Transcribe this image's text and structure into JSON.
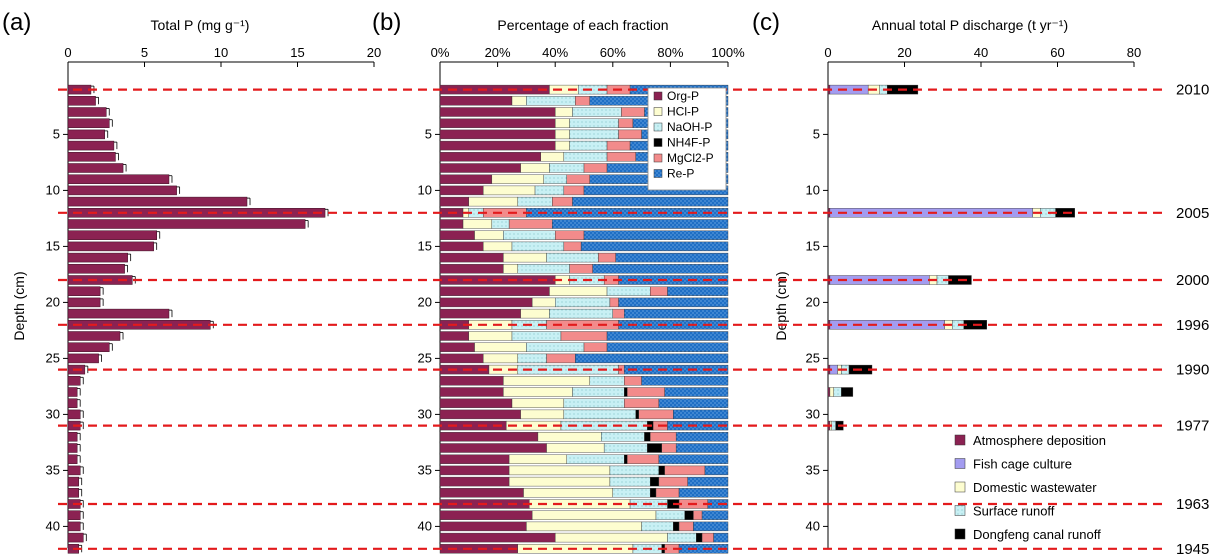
{
  "panel_labels": [
    "(a)",
    "(b)",
    "(c)"
  ],
  "year_labels": [
    {
      "depth": 1,
      "year": "2010"
    },
    {
      "depth": 12,
      "year": "2005"
    },
    {
      "depth": 18,
      "year": "2000"
    },
    {
      "depth": 22,
      "year": "1996"
    },
    {
      "depth": 26,
      "year": "1990"
    },
    {
      "depth": 31,
      "year": "1977"
    },
    {
      "depth": 38,
      "year": "1963"
    },
    {
      "depth": 42,
      "year": "1945"
    }
  ],
  "colors": {
    "org": "#8b2252",
    "hcl": "#fdfdd0",
    "naoh": "#c8f0f4",
    "nh4f": "#000000",
    "mgcl2": "#f28b8b",
    "rep": "#1f6fc5",
    "fish": "#a39cf0",
    "dashed": "#e31a1c"
  },
  "chart_data": [
    {
      "type": "bar",
      "orientation": "horizontal",
      "title": "Total P (mg g⁻¹)",
      "ylabel": "Depth (cm)",
      "xlim": [
        0,
        20
      ],
      "ylim": [
        42,
        0
      ],
      "xticks": [
        "0",
        "5",
        "10",
        "15",
        "20"
      ],
      "yticks": [
        "5",
        "10",
        "15",
        "20",
        "25",
        "30",
        "35",
        "40"
      ],
      "depths": [
        1,
        2,
        3,
        4,
        5,
        6,
        7,
        8,
        9,
        10,
        11,
        12,
        13,
        14,
        15,
        16,
        17,
        18,
        19,
        20,
        21,
        22,
        23,
        24,
        25,
        26,
        27,
        28,
        29,
        30,
        31,
        32,
        33,
        34,
        35,
        36,
        37,
        38,
        39,
        40,
        41,
        42
      ],
      "values": [
        1.5,
        1.8,
        2.5,
        2.7,
        2.4,
        3.0,
        3.1,
        3.6,
        6.6,
        7.1,
        11.7,
        16.8,
        15.5,
        5.8,
        5.6,
        3.9,
        3.7,
        4.2,
        2.1,
        2.1,
        6.6,
        9.3,
        3.4,
        2.7,
        2.0,
        1.1,
        0.8,
        0.6,
        0.6,
        0.8,
        0.8,
        0.6,
        0.6,
        0.6,
        0.8,
        0.7,
        0.7,
        0.8,
        0.8,
        0.8,
        1.0,
        0.7
      ]
    },
    {
      "type": "bar",
      "orientation": "horizontal",
      "stacked": true,
      "title": "Percentage of each fraction",
      "xlim": [
        0,
        100
      ],
      "ylim": [
        42,
        0
      ],
      "xticks": [
        "0%",
        "20%",
        "40%",
        "60%",
        "80%",
        "100%"
      ],
      "yticks": [
        "5",
        "10",
        "15",
        "20",
        "25",
        "30",
        "35",
        "40"
      ],
      "legend_position": "top-right",
      "depths": [
        1,
        2,
        3,
        4,
        5,
        6,
        7,
        8,
        9,
        10,
        11,
        12,
        13,
        14,
        15,
        16,
        17,
        18,
        19,
        20,
        21,
        22,
        23,
        24,
        25,
        26,
        27,
        28,
        29,
        30,
        31,
        32,
        33,
        34,
        35,
        36,
        37,
        38,
        39,
        40,
        41,
        42
      ],
      "series": [
        {
          "name": "Org-P",
          "key": "org",
          "values": [
            38,
            25,
            40,
            40,
            40,
            40,
            35,
            28,
            18,
            15,
            10,
            8,
            8,
            12,
            15,
            22,
            22,
            40,
            38,
            32,
            28,
            10,
            10,
            12,
            15,
            17,
            22,
            22,
            25,
            28,
            23,
            34,
            37,
            24,
            24,
            24,
            29,
            31,
            32,
            30,
            40,
            27
          ]
        },
        {
          "name": "HCl-P",
          "key": "hcl",
          "values": [
            10,
            5,
            6,
            5,
            5,
            5,
            8,
            10,
            18,
            18,
            17,
            2,
            10,
            10,
            10,
            15,
            5,
            5,
            20,
            8,
            10,
            15,
            15,
            18,
            12,
            10,
            30,
            24,
            18,
            15,
            19,
            22,
            20,
            20,
            35,
            35,
            31,
            35,
            43,
            40,
            39,
            40
          ]
        },
        {
          "name": "NaOH-P",
          "key": "naoh",
          "values": [
            10,
            17,
            17,
            17,
            17,
            13,
            15,
            12,
            8,
            10,
            12,
            5,
            6,
            18,
            18,
            18,
            18,
            12,
            15,
            19,
            22,
            12,
            17,
            20,
            10,
            35,
            12,
            18,
            21,
            25,
            30,
            15,
            15,
            20,
            17,
            14,
            13,
            13,
            10,
            11,
            10,
            10
          ]
        },
        {
          "name": "NH4F-P",
          "key": "nh4f",
          "values": [
            0,
            0,
            0,
            0,
            0,
            0,
            0,
            0,
            0,
            0,
            0,
            0,
            0,
            0,
            0,
            0,
            0,
            0,
            0,
            0,
            0,
            0,
            0,
            0,
            0,
            0,
            0,
            1,
            0,
            1,
            2,
            2,
            5,
            1,
            2,
            3,
            2,
            4,
            3,
            2,
            2,
            1
          ]
        },
        {
          "name": "MgCl2-P",
          "key": "mgcl2",
          "values": [
            8,
            5,
            8,
            5,
            8,
            8,
            10,
            8,
            8,
            7,
            7,
            15,
            15,
            10,
            6,
            6,
            8,
            5,
            6,
            3,
            4,
            25,
            16,
            8,
            10,
            2,
            6,
            13,
            12,
            12,
            5,
            9,
            5,
            11,
            14,
            10,
            8,
            10,
            3,
            5,
            4,
            5
          ]
        },
        {
          "name": "Re-P",
          "key": "rep",
          "values": [
            34,
            48,
            29,
            33,
            30,
            34,
            32,
            42,
            48,
            50,
            54,
            70,
            61,
            50,
            51,
            39,
            47,
            38,
            21,
            38,
            36,
            38,
            42,
            42,
            53,
            36,
            30,
            22,
            24,
            19,
            21,
            18,
            18,
            24,
            8,
            14,
            17,
            7,
            9,
            12,
            5,
            17
          ]
        }
      ]
    },
    {
      "type": "bar",
      "orientation": "horizontal",
      "stacked": true,
      "title": "Annual total P discharge (t yr⁻¹)",
      "ylabel": "Depth (cm)",
      "xlim": [
        0,
        80
      ],
      "ylim": [
        42,
        0
      ],
      "xticks": [
        "0",
        "20",
        "40",
        "60",
        "80"
      ],
      "yticks": [
        "5",
        "10",
        "15",
        "20",
        "25",
        "30",
        "35",
        "40"
      ],
      "legend_position": "bottom-right",
      "depths": [
        1,
        12,
        18,
        22,
        26,
        28,
        31
      ],
      "series": [
        {
          "name": "Atmosphere deposition",
          "key": "org",
          "values": [
            0.5,
            0.5,
            0.5,
            0.5,
            0.5,
            0.5,
            0.5
          ]
        },
        {
          "name": "Fish cage culture",
          "key": "fish",
          "values": [
            10,
            53,
            26,
            30,
            2,
            0,
            0
          ]
        },
        {
          "name": "Domestic wastewater",
          "key": "hcl",
          "values": [
            3,
            2,
            2,
            2,
            1,
            1,
            0.5
          ]
        },
        {
          "name": "Surface runoff",
          "key": "naoh",
          "values": [
            2,
            4,
            3,
            3,
            2,
            2,
            1
          ]
        },
        {
          "name": "Dongfeng canal runoff",
          "key": "nh4f",
          "values": [
            8,
            5,
            6,
            6,
            6,
            3,
            2
          ]
        }
      ]
    }
  ]
}
